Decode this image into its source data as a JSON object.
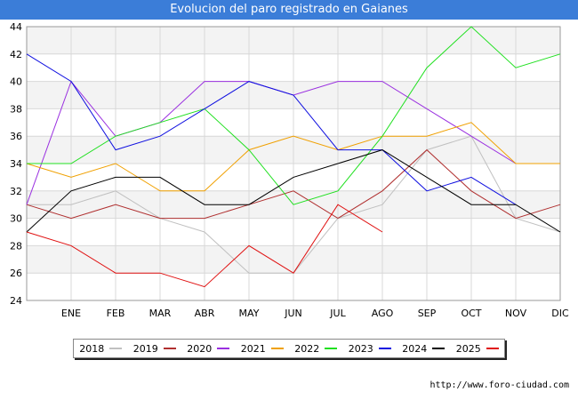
{
  "title": "Evolucion del paro registrado en Gaianes",
  "footer_url": "http://www.foro-ciudad.com",
  "chart_data": {
    "type": "line",
    "title": "Evolucion del paro registrado en Gaianes",
    "categories": [
      "",
      "ENE",
      "FEB",
      "MAR",
      "ABR",
      "MAY",
      "JUN",
      "JUL",
      "AGO",
      "SEP",
      "OCT",
      "NOV",
      "DIC"
    ],
    "ylim": [
      24,
      44
    ],
    "yticks": [
      24,
      26,
      28,
      30,
      32,
      34,
      36,
      38,
      40,
      42,
      44
    ],
    "grid": true,
    "legend_position": "bottom",
    "series": [
      {
        "name": "2018",
        "color": "#c0c0c0",
        "values": [
          31,
          31,
          32,
          30,
          29,
          26,
          26,
          30,
          31,
          35,
          36,
          30,
          29
        ]
      },
      {
        "name": "2019",
        "color": "#b03030",
        "values": [
          31,
          30,
          31,
          30,
          30,
          31,
          32,
          30,
          32,
          35,
          32,
          30,
          31
        ]
      },
      {
        "name": "2020",
        "color": "#9a30e0",
        "values": [
          31,
          40,
          36,
          37,
          40,
          40,
          39,
          40,
          40,
          38,
          36,
          34,
          null
        ]
      },
      {
        "name": "2021",
        "color": "#f0a000",
        "values": [
          34,
          33,
          34,
          32,
          32,
          35,
          36,
          35,
          36,
          36,
          37,
          34,
          34
        ]
      },
      {
        "name": "2022",
        "color": "#20e020",
        "values": [
          34,
          34,
          36,
          37,
          38,
          35,
          31,
          32,
          36,
          41,
          44,
          41,
          42
        ]
      },
      {
        "name": "2023",
        "color": "#1010e0",
        "values": [
          42,
          40,
          35,
          36,
          38,
          40,
          39,
          35,
          35,
          32,
          33,
          31,
          null
        ]
      },
      {
        "name": "2024",
        "color": "#000000",
        "values": [
          29,
          32,
          33,
          33,
          31,
          31,
          33,
          34,
          35,
          33,
          31,
          31,
          29
        ]
      },
      {
        "name": "2025",
        "color": "#e01010",
        "values": [
          29,
          28,
          26,
          26,
          25,
          28,
          26,
          31,
          29,
          null,
          null,
          null,
          null
        ]
      }
    ]
  }
}
